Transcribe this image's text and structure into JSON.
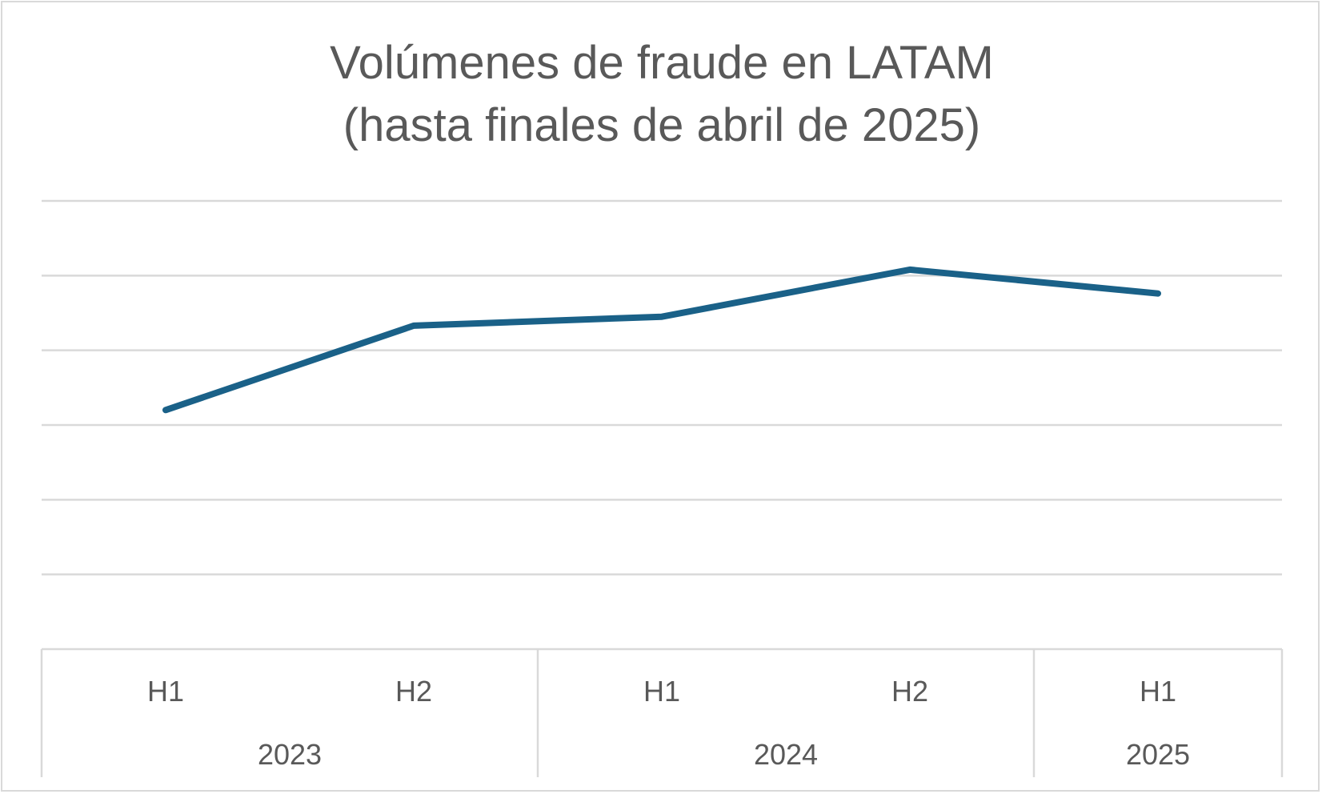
{
  "chart_data": {
    "type": "line",
    "title": [
      "Volúmenes de fraude en LATAM",
      "(hasta finales de abril de 2025)"
    ],
    "xlabel": "",
    "ylabel": "",
    "categories": [
      "H1",
      "H2",
      "H1",
      "H2",
      "H1"
    ],
    "groups": [
      {
        "label": "2023",
        "span": 2
      },
      {
        "label": "2024",
        "span": 2
      },
      {
        "label": "2025",
        "span": 1
      }
    ],
    "series": [
      {
        "values": [
          3.2,
          4.33,
          4.45,
          5.08,
          4.76
        ]
      }
    ],
    "ylim": [
      0,
      6
    ],
    "y_ticks_shown": false,
    "grid": true,
    "legend": "none",
    "colors": {
      "series": "#1a6188",
      "grid": "#d9d9d9",
      "text": "#595959"
    }
  }
}
